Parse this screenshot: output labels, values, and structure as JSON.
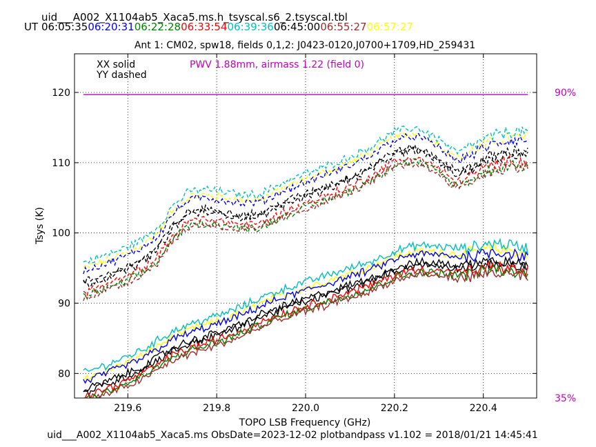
{
  "header": {
    "filename": "uid___A002_X1104ab5_Xaca5.ms.h_tsyscal.s6_2.tsyscal.tbl",
    "ut_label": "UT",
    "times": [
      {
        "text": "06:05:35",
        "color": "#000000"
      },
      {
        "text": "06:20:31",
        "color": "#0000ff"
      },
      {
        "text": "06:22:28",
        "color": "#008000"
      },
      {
        "text": "06:33:54",
        "color": "#ff0000"
      },
      {
        "text": "06:39:36",
        "color": "#00bfbf"
      },
      {
        "text": "06:45:00",
        "color": "#000000"
      },
      {
        "text": "06:55:27",
        "color": "#a52a2a"
      },
      {
        "text": "06:57:27",
        "color": "#ffff00"
      }
    ]
  },
  "footer": "uid___A002_X1104ab5_Xaca5.ms  ObsDate=2023-12-02   plotbandpass v1.102 = 2018/01/21 14:45:41",
  "chart_data": {
    "type": "line",
    "title": "Ant 1: CM02,  spw18,  fields 0,1,2: J0423-0120,J0700+1709,HD_259431",
    "xlabel": "TOPO LSB Frequency (GHz)",
    "ylabel": "Tsys (K)",
    "xlim": [
      219.48,
      220.52
    ],
    "ylim": [
      76.5,
      125.5
    ],
    "xticks": [
      219.6,
      219.8,
      220.0,
      220.2,
      220.4
    ],
    "yticks": [
      80,
      90,
      100,
      110,
      120
    ],
    "grid": true,
    "legend_notes": [
      "XX solid",
      "YY dashed"
    ],
    "pwv_note": {
      "text": "PWV 1.88mm, airmass 1.22 (field 0)",
      "color": "#bf00bf"
    },
    "atm_line": {
      "y": 119.7,
      "x_range": [
        219.5,
        220.5
      ],
      "color": "#bf00bf"
    },
    "right_axis_labels": [
      {
        "text": "90%",
        "y": 120,
        "color": "#bf00bf"
      },
      {
        "text": "35%",
        "y": 76.5,
        "color": "#bf00bf"
      }
    ],
    "shape_x": [
      219.5,
      219.55,
      219.6,
      219.64,
      219.67,
      219.7,
      219.74,
      219.78,
      219.82,
      219.86,
      219.9,
      219.95,
      220.0,
      220.05,
      220.1,
      220.15,
      220.2,
      220.25,
      220.3,
      220.34,
      220.38,
      220.42,
      220.46,
      220.5
    ],
    "yy_shape": [
      0,
      1.0,
      2.2,
      3.6,
      5.2,
      8.0,
      10.2,
      10.4,
      10.0,
      9.6,
      9.8,
      11.4,
      12.6,
      13.8,
      15.0,
      16.6,
      18.6,
      19.2,
      17.6,
      15.6,
      16.8,
      18.0,
      18.6,
      18.6
    ],
    "xx_shape": [
      0,
      1.2,
      2.4,
      3.6,
      4.8,
      6.0,
      7.0,
      7.8,
      8.6,
      9.6,
      10.8,
      12.0,
      13.0,
      14.0,
      15.0,
      16.0,
      17.4,
      18.2,
      18.1,
      17.8,
      18.0,
      18.6,
      18.3,
      17.8
    ],
    "series": [
      {
        "time": "06:57:27",
        "color": "#ffff00",
        "xx_start": 79.2,
        "yy_start": 95.0
      },
      {
        "time": "06:39:36",
        "color": "#00bfbf",
        "xx_start": 80.0,
        "yy_start": 95.8
      },
      {
        "time": "06:20:31",
        "color": "#0000ff",
        "xx_start": 78.8,
        "yy_start": 94.6
      },
      {
        "time": "06:05:35",
        "color": "#000000",
        "xx_start": 77.6,
        "yy_start": 93.0
      },
      {
        "time": "06:45:00",
        "color": "#000000",
        "xx_start": 77.2,
        "yy_start": 92.6
      },
      {
        "time": "06:33:54",
        "color": "#ff0000",
        "xx_start": 76.6,
        "yy_start": 91.6
      },
      {
        "time": "06:22:28",
        "color": "#008000",
        "xx_start": 76.2,
        "yy_start": 91.0
      },
      {
        "time": "06:55:27",
        "color": "#a52a2a",
        "xx_start": 75.8,
        "yy_start": 90.8
      }
    ]
  }
}
